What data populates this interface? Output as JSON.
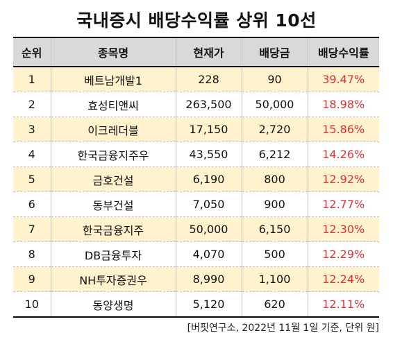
{
  "title": "국내증시 배당수익률 상위 10선",
  "columns": [
    "순위",
    "종목명",
    "현재가",
    "배당금",
    "배당수익률"
  ],
  "rows": [
    {
      "rank": "1",
      "name": "베트남개발1",
      "price": "228",
      "dividend": "90",
      "yield": "39.47%"
    },
    {
      "rank": "2",
      "name": "효성티앤씨",
      "price": "263,500",
      "dividend": "50,000",
      "yield": "18.98%"
    },
    {
      "rank": "3",
      "name": "이크레더블",
      "price": "17,150",
      "dividend": "2,720",
      "yield": "15.86%"
    },
    {
      "rank": "4",
      "name": "한국금융지주우",
      "price": "43,550",
      "dividend": "6,212",
      "yield": "14.26%"
    },
    {
      "rank": "5",
      "name": "금호건설",
      "price": "6,190",
      "dividend": "800",
      "yield": "12.92%"
    },
    {
      "rank": "6",
      "name": "동부건설",
      "price": "7,050",
      "dividend": "900",
      "yield": "12.77%"
    },
    {
      "rank": "7",
      "name": "한국금융지주",
      "price": "50,000",
      "dividend": "6,150",
      "yield": "12.30%"
    },
    {
      "rank": "8",
      "name": "DB금융투자",
      "price": "4,070",
      "dividend": "500",
      "yield": "12.29%"
    },
    {
      "rank": "9",
      "name": "NH투자증권우",
      "price": "8,990",
      "dividend": "1,100",
      "yield": "12.24%"
    },
    {
      "rank": "10",
      "name": "동양생명",
      "price": "5,120",
      "dividend": "620",
      "yield": "12.11%"
    }
  ],
  "footnote": "[버핏연구소, 2022년 11월 1일 기준, 단위 원]",
  "colors": {
    "header_bg": "#d9d9d9",
    "highlight_row_bg": "#fff2cc",
    "yield_text": "#e0302f"
  }
}
